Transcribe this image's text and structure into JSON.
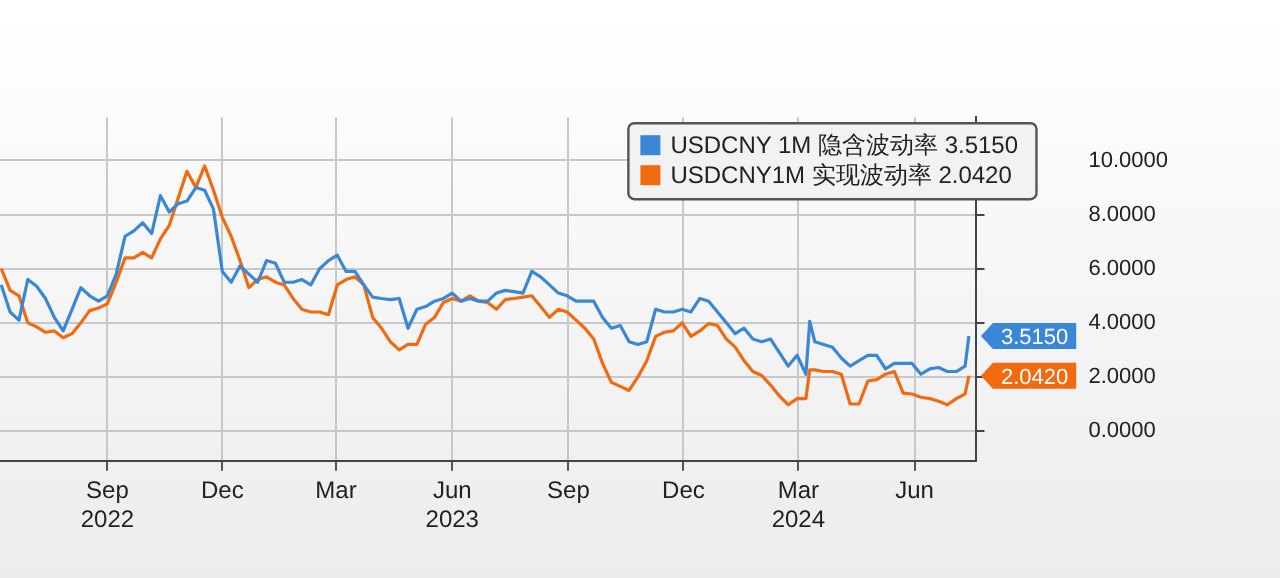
{
  "chart_data": {
    "type": "line",
    "x": [
      "2022-06-24",
      "2022-07-01",
      "2022-07-08",
      "2022-07-15",
      "2022-07-22",
      "2022-07-29",
      "2022-08-05",
      "2022-08-12",
      "2022-08-19",
      "2022-08-26",
      "2022-09-02",
      "2022-09-09",
      "2022-09-16",
      "2022-09-23",
      "2022-09-30",
      "2022-10-07",
      "2022-10-14",
      "2022-10-21",
      "2022-10-28",
      "2022-11-04",
      "2022-11-11",
      "2022-11-18",
      "2022-11-25",
      "2022-12-02",
      "2022-12-09",
      "2022-12-16",
      "2022-12-23",
      "2022-12-30",
      "2023-01-06",
      "2023-01-13",
      "2023-01-20",
      "2023-01-27",
      "2023-02-03",
      "2023-02-10",
      "2023-02-17",
      "2023-02-24",
      "2023-03-03",
      "2023-03-10",
      "2023-03-17",
      "2023-03-24",
      "2023-03-31",
      "2023-04-07",
      "2023-04-14",
      "2023-04-21",
      "2023-04-28",
      "2023-05-05",
      "2023-05-12",
      "2023-05-19",
      "2023-05-26",
      "2023-06-02",
      "2023-06-09",
      "2023-06-16",
      "2023-06-23",
      "2023-06-30",
      "2023-07-07",
      "2023-07-14",
      "2023-07-21",
      "2023-07-28",
      "2023-08-04",
      "2023-08-11",
      "2023-08-18",
      "2023-08-25",
      "2023-09-01",
      "2023-09-08",
      "2023-09-15",
      "2023-09-22",
      "2023-09-29",
      "2023-10-06",
      "2023-10-13",
      "2023-10-20",
      "2023-10-27",
      "2023-11-03",
      "2023-11-10",
      "2023-11-17",
      "2023-11-24",
      "2023-12-01",
      "2023-12-08",
      "2023-12-15",
      "2023-12-22",
      "2023-12-29",
      "2024-01-05",
      "2024-01-12",
      "2024-01-19",
      "2024-01-26",
      "2024-02-02",
      "2024-02-09",
      "2024-02-16",
      "2024-02-23",
      "2024-03-01",
      "2024-03-08",
      "2024-03-15",
      "2024-03-22",
      "2024-03-25",
      "2024-03-29",
      "2024-04-05",
      "2024-04-12",
      "2024-04-19",
      "2024-04-26",
      "2024-05-03",
      "2024-05-10",
      "2024-05-17",
      "2024-05-24",
      "2024-05-31",
      "2024-06-07",
      "2024-06-14",
      "2024-06-21",
      "2024-06-28",
      "2024-07-05",
      "2024-07-12",
      "2024-07-19",
      "2024-07-26",
      "2024-07-29"
    ],
    "series": [
      {
        "name": "USDCNY 1M 隐含波动率 3.5150",
        "color": "#3a87d6",
        "values": [
          5.4,
          4.4,
          4.1,
          5.6,
          5.35,
          4.9,
          4.2,
          3.7,
          4.5,
          5.3,
          5.0,
          4.8,
          5.0,
          5.8,
          7.2,
          7.4,
          7.7,
          7.3,
          8.7,
          8.1,
          8.4,
          8.5,
          9.0,
          8.9,
          8.2,
          5.9,
          5.5,
          6.1,
          5.8,
          5.5,
          6.3,
          6.2,
          5.5,
          5.5,
          5.6,
          5.4,
          6.0,
          6.3,
          6.5,
          5.9,
          5.9,
          5.4,
          4.95,
          4.9,
          4.86,
          4.9,
          3.8,
          4.5,
          4.6,
          4.8,
          4.9,
          5.1,
          4.8,
          4.9,
          4.8,
          4.8,
          5.1,
          5.2,
          5.15,
          5.1,
          5.9,
          5.7,
          5.4,
          5.1,
          5.0,
          4.8,
          4.8,
          4.8,
          4.2,
          3.8,
          3.9,
          3.3,
          3.2,
          3.3,
          4.5,
          4.4,
          4.4,
          4.5,
          4.4,
          4.9,
          4.8,
          4.4,
          4.0,
          3.6,
          3.8,
          3.4,
          3.3,
          3.4,
          2.9,
          2.4,
          2.8,
          2.1,
          4.05,
          3.3,
          3.2,
          3.1,
          2.7,
          2.4,
          2.6,
          2.8,
          2.8,
          2.3,
          2.5,
          2.5,
          2.5,
          2.1,
          2.3,
          2.35,
          2.2,
          2.2,
          2.4,
          3.515
        ]
      },
      {
        "name": "USDCNY1M 实现波动率 2.0420",
        "color": "#f26a10",
        "values": [
          6.0,
          5.2,
          5.0,
          4.0,
          3.85,
          3.65,
          3.7,
          3.45,
          3.6,
          4.0,
          4.45,
          4.55,
          4.7,
          5.5,
          6.4,
          6.4,
          6.6,
          6.4,
          7.1,
          7.6,
          8.6,
          9.6,
          9.0,
          9.8,
          8.9,
          7.9,
          7.2,
          6.3,
          5.3,
          5.6,
          5.7,
          5.5,
          5.4,
          4.9,
          4.5,
          4.4,
          4.4,
          4.3,
          5.4,
          5.6,
          5.7,
          5.4,
          4.2,
          3.8,
          3.3,
          3.0,
          3.2,
          3.2,
          3.95,
          4.2,
          4.75,
          4.9,
          4.8,
          5.0,
          4.8,
          4.75,
          4.5,
          4.86,
          4.9,
          4.95,
          5.0,
          4.6,
          4.2,
          4.5,
          4.4,
          4.1,
          3.8,
          3.4,
          2.5,
          1.8,
          1.65,
          1.5,
          2.0,
          2.6,
          3.5,
          3.65,
          3.7,
          4.0,
          3.5,
          3.7,
          3.97,
          3.9,
          3.4,
          3.1,
          2.6,
          2.2,
          2.05,
          1.7,
          1.3,
          0.97,
          1.2,
          1.2,
          2.26,
          2.26,
          2.2,
          2.2,
          2.1,
          1.0,
          1.0,
          1.85,
          1.9,
          2.1,
          2.2,
          1.4,
          1.37,
          1.25,
          1.2,
          1.1,
          0.97,
          1.2,
          1.37,
          2.042
        ]
      }
    ],
    "xlim": [
      "2022-06-23",
      "2024-08-04"
    ],
    "xticks": [
      {
        "value": "2022-09-16",
        "label": "Sep\n2022"
      },
      {
        "value": "2022-12-16",
        "label": "Dec"
      },
      {
        "value": "2023-03-16",
        "label": "Mar"
      },
      {
        "value": "2023-06-16",
        "label": "Jun\n2023"
      },
      {
        "value": "2023-09-16",
        "label": "Sep"
      },
      {
        "value": "2023-12-16",
        "label": "Dec"
      },
      {
        "value": "2024-03-16",
        "label": "Mar\n2024"
      },
      {
        "value": "2024-06-16",
        "label": "Jun"
      }
    ],
    "ylim": [
      -1.1,
      11.6
    ],
    "yticks": [
      {
        "value": 0,
        "label": "0.0000"
      },
      {
        "value": 2,
        "label": "2.0000"
      },
      {
        "value": 4,
        "label": "4.0000"
      },
      {
        "value": 6,
        "label": "6.0000"
      },
      {
        "value": 8,
        "label": "8.0000"
      },
      {
        "value": 10,
        "label": "10.0000"
      }
    ],
    "annotations": [
      {
        "text": "3.5150",
        "x": "2024-07-29",
        "y": 3.515
      },
      {
        "text": "2.0420",
        "x": "2024-07-29",
        "y": 2.042
      }
    ],
    "grid": true,
    "legend": "top right",
    "line_style": "solid",
    "marker": "none"
  }
}
